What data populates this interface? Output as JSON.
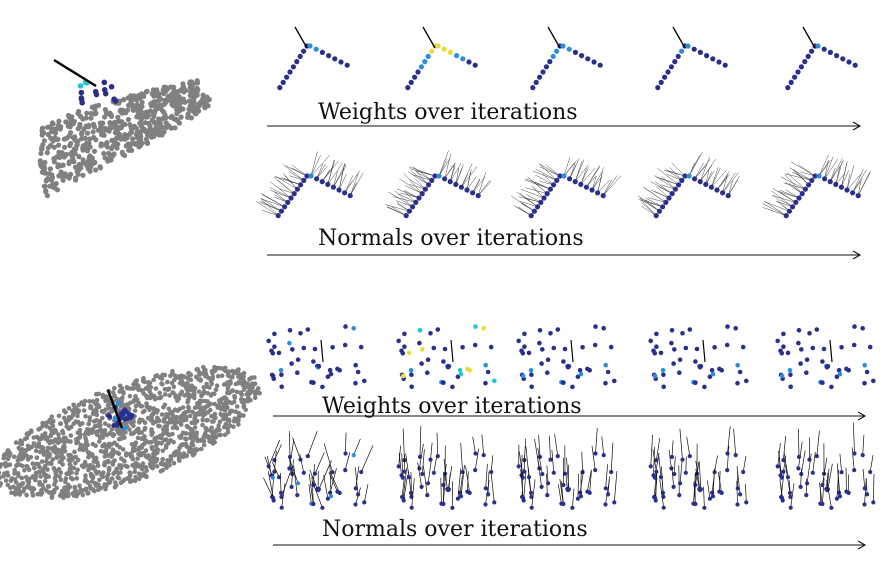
{
  "captions": {
    "top_weights": "Weights over iterations",
    "top_normals": "Normals over iterations",
    "bottom_weights": "Weights over iterations",
    "bottom_normals": "Normals over iterations"
  },
  "colors": {
    "cloud": "#808080",
    "low_weight": "#2b2f8c",
    "mid_weight": "#2a8fd8",
    "high_weight": "#e8dc3a",
    "cyan": "#21c7d0",
    "normal_line": "#111111",
    "arrow": "#111111"
  },
  "iterations": 5
}
